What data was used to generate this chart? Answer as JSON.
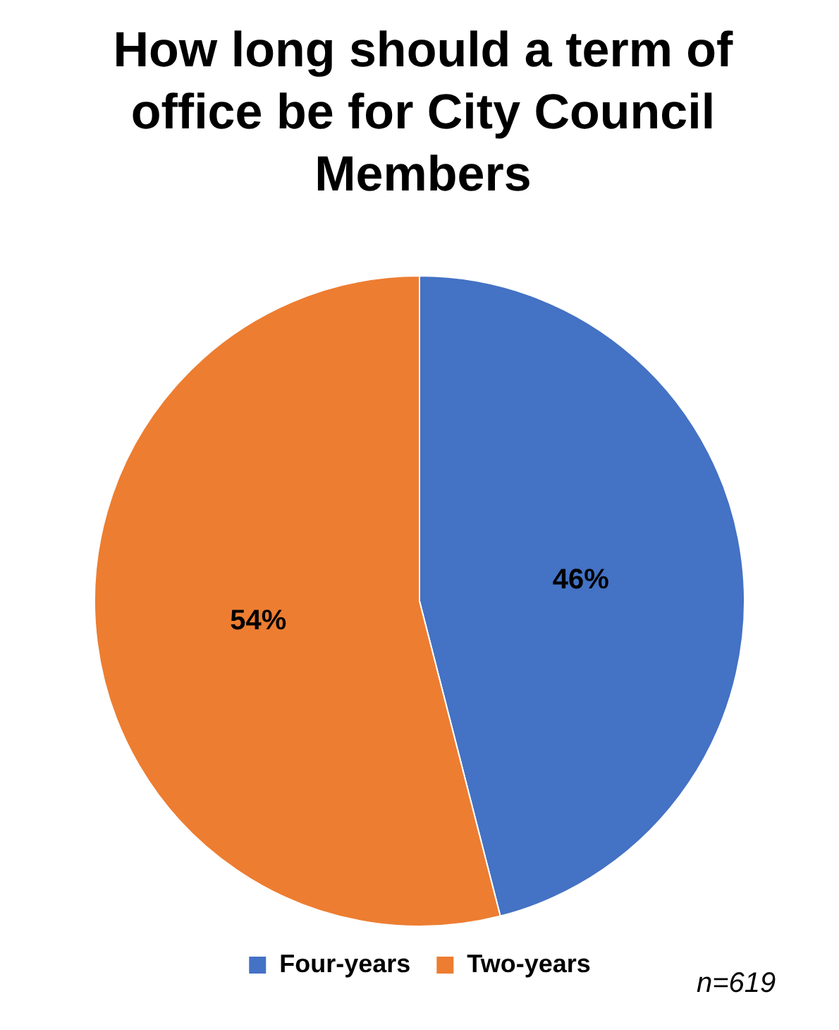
{
  "chart_data": {
    "type": "pie",
    "title": "How long should a term of office be for City Council Members",
    "categories": [
      "Four-years",
      "Two-years"
    ],
    "values": [
      46,
      54
    ],
    "colors": [
      "#4472c4",
      "#ed7d31"
    ],
    "value_labels": [
      "46%",
      "54%"
    ],
    "legend": "bottom",
    "annotations": [
      "n=619"
    ]
  }
}
